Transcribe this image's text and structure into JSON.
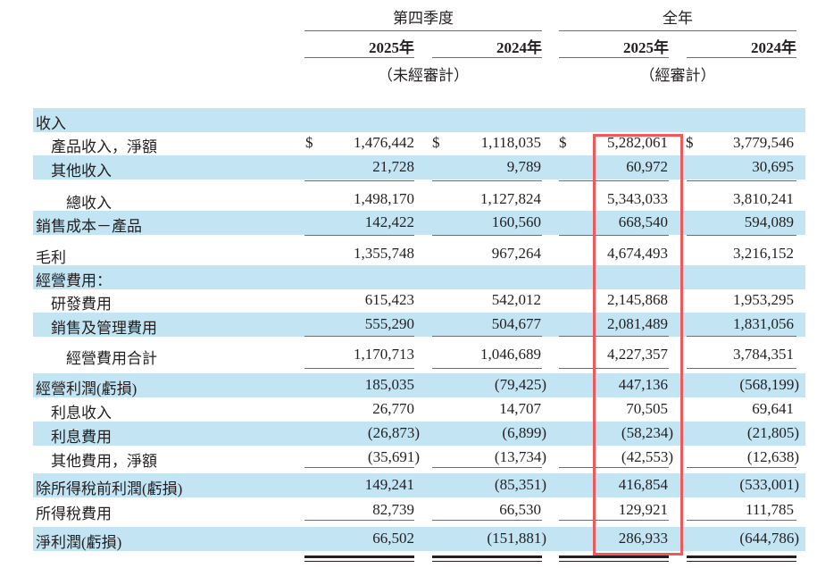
{
  "header": {
    "q4": "第四季度",
    "full_year": "全年",
    "years": [
      "2025年",
      "2024年",
      "2025年",
      "2024年"
    ],
    "q4_note": "（未經審計）",
    "fy_note": "（經審計）"
  },
  "highlight_color": "#f0595a",
  "row_color": "#c2e4f3",
  "rows": [
    {
      "label": "收入",
      "indent": 0,
      "values": [
        "",
        "",
        "",
        ""
      ]
    },
    {
      "label": "產品收入，淨額",
      "indent": 1,
      "dollar": "$",
      "values": [
        "1,476,442",
        "1,118,035",
        "5,282,061",
        "3,779,546"
      ]
    },
    {
      "label": "其他收入",
      "indent": 1,
      "values": [
        "21,728",
        "9,789",
        "60,972",
        "30,695"
      ]
    },
    {
      "label": "總收入",
      "indent": 2,
      "values": [
        "1,498,170",
        "1,127,824",
        "5,343,033",
        "3,810,241"
      ]
    },
    {
      "label": "銷售成本－產品",
      "indent": 0,
      "values": [
        "142,422",
        "160,560",
        "668,540",
        "594,089"
      ]
    },
    {
      "label": "毛利",
      "indent": 0,
      "values": [
        "1,355,748",
        "967,264",
        "4,674,493",
        "3,216,152"
      ]
    },
    {
      "label": "經營費用：",
      "indent": 0,
      "values": [
        "",
        "",
        "",
        ""
      ]
    },
    {
      "label": "研發費用",
      "indent": 1,
      "values": [
        "615,423",
        "542,012",
        "2,145,868",
        "1,953,295"
      ]
    },
    {
      "label": "銷售及管理費用",
      "indent": 1,
      "values": [
        "555,290",
        "504,677",
        "2,081,489",
        "1,831,056"
      ]
    },
    {
      "label": "經營費用合計",
      "indent": 2,
      "values": [
        "1,170,713",
        "1,046,689",
        "4,227,357",
        "3,784,351"
      ]
    },
    {
      "label": "經營利潤(虧損)",
      "indent": 0,
      "values": [
        "185,035",
        "(79,425)",
        "447,136",
        "(568,199)"
      ]
    },
    {
      "label": "利息收入",
      "indent": 1,
      "values": [
        "26,770",
        "14,707",
        "70,505",
        "69,641"
      ]
    },
    {
      "label": "利息費用",
      "indent": 1,
      "values": [
        "(26,873)",
        "(6,899)",
        "(58,234)",
        "(21,805)"
      ]
    },
    {
      "label": "其他費用，淨額",
      "indent": 1,
      "values": [
        "(35,691)",
        "(13,734)",
        "(42,553)",
        "(12,638)"
      ]
    },
    {
      "label": "除所得稅前利潤(虧損)",
      "indent": 0,
      "values": [
        "149,241",
        "(85,351)",
        "416,854",
        "(533,001)"
      ]
    },
    {
      "label": "所得稅費用",
      "indent": 0,
      "values": [
        "82,739",
        "66,530",
        "129,921",
        "111,785"
      ]
    },
    {
      "label": "淨利潤(虧損)",
      "indent": 0,
      "values": [
        "66,502",
        "(151,881)",
        "286,933",
        "(644,786)"
      ]
    }
  ]
}
